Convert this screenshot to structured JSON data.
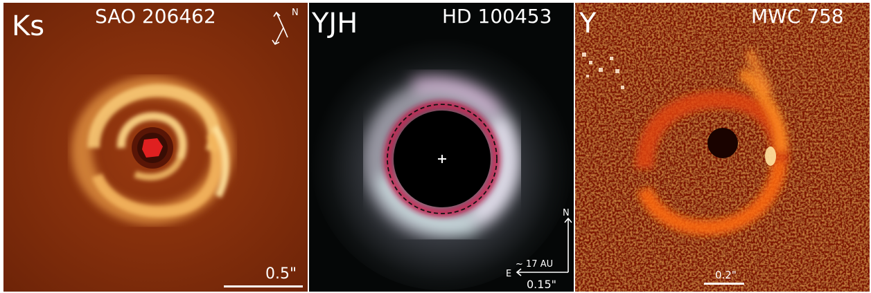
{
  "panels": [
    {
      "band": "Ks",
      "target": "SAO 206462",
      "compass_north": "N",
      "scale_label": "0.5\""
    },
    {
      "band": "YJH",
      "target": "HD 100453",
      "compass_north": "N",
      "compass_east": "E",
      "scale_au": "~ 17 AU",
      "scale_label": "0.15\""
    },
    {
      "band": "Y",
      "target": "MWC 758",
      "scale_label": "0.2\""
    }
  ],
  "colors": {
    "panel1_bg": "#7a2a0a",
    "panel1_disk": "#f0b860",
    "panel1_center": "#e02020",
    "panel2_bg": "#050707",
    "panel2_ring": "#e7dff0",
    "panel2_rim": "#c8184a",
    "panel3_bg": "#8a1405",
    "panel3_disk": "#ff6a10",
    "text": "#ffffff"
  }
}
